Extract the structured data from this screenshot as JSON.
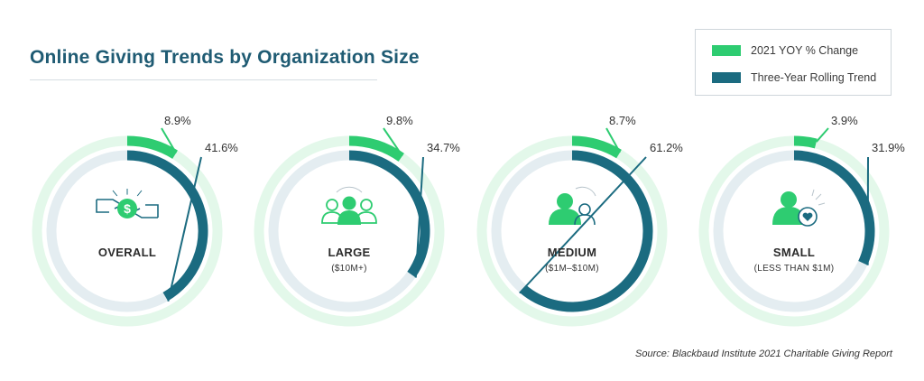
{
  "chart_data": {
    "type": "radial-bar",
    "title": "Online Giving Trends by Organization Size",
    "source": "Source: Blackbaud Institute 2021 Charitable Giving Report",
    "legend": {
      "position": "top-right",
      "items": [
        {
          "name": "2021 YOY % Change",
          "color": "#2ecc71"
        },
        {
          "name": "Three-Year Rolling Trend",
          "color": "#1b6b80"
        }
      ]
    },
    "colors": {
      "yoy": "#2ecc71",
      "trend": "#1b6b80",
      "outer_track": "#e3f8ea",
      "inner_track": "#e4edf1",
      "icon": "#2ecc71",
      "icon_dark": "#1b6b80"
    },
    "series": [
      {
        "name": "2021 YOY % Change",
        "values": [
          8.9,
          9.8,
          8.7,
          3.9
        ],
        "labels": [
          "8.9%",
          "9.8%",
          "8.7%",
          "3.9%"
        ]
      },
      {
        "name": "Three-Year Rolling Trend",
        "values": [
          41.6,
          34.7,
          61.2,
          31.9
        ],
        "labels": [
          "41.6%",
          "34.7%",
          "61.2%",
          "31.9%"
        ]
      }
    ],
    "categories": [
      {
        "label": "OVERALL",
        "sublabel": "",
        "icon": "hands-money-icon"
      },
      {
        "label": "LARGE",
        "sublabel": "($10M+)",
        "icon": "group-people-icon"
      },
      {
        "label": "MEDIUM",
        "sublabel": "($1M–$10M)",
        "icon": "two-people-icon"
      },
      {
        "label": "SMALL",
        "sublabel": "(LESS THAN $1M)",
        "icon": "person-heart-icon"
      }
    ],
    "scale_max": 100
  }
}
